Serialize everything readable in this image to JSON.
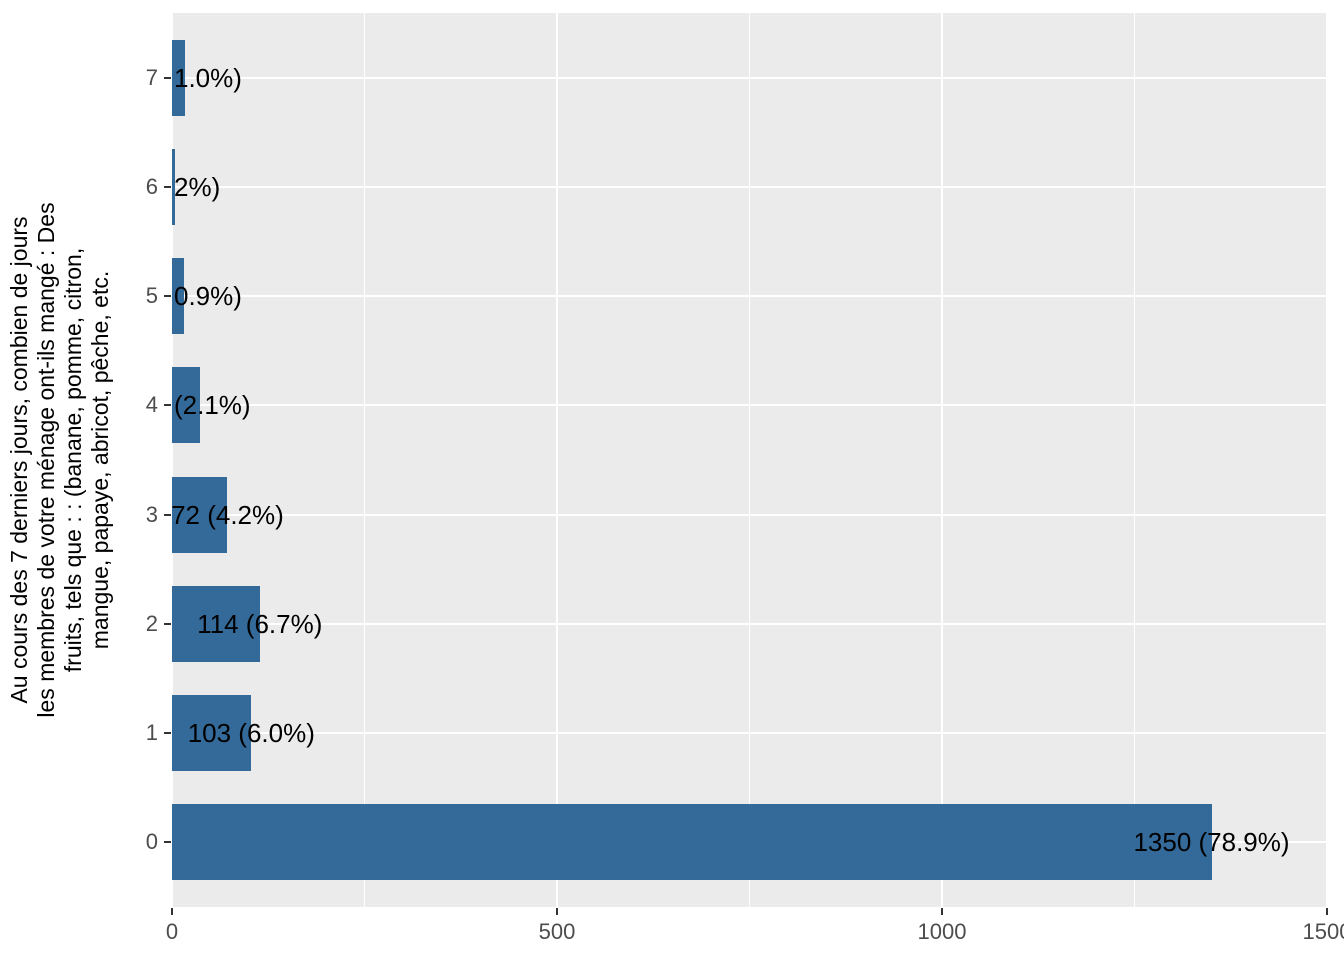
{
  "chart_data": {
    "type": "bar",
    "orientation": "horizontal",
    "title": "",
    "xlabel": "",
    "ylabel": "Au cours des 7 derniers jours, combien de jours les membres de votre ménage ont-ils mangé : Des fruits, tels que : : (banane, pomme, citron, mangue, papaye, abricot, pêche, etc.",
    "ylabel_lines": [
      "Au cours des 7 derniers jours, combien de jours",
      "les membres de votre ménage ont-ils mangé : Des",
      "fruits, tels que : : (banane, pomme, citron,",
      "mangue, papaye, abricot, pêche, etc."
    ],
    "categories": [
      "0",
      "1",
      "2",
      "3",
      "4",
      "5",
      "6",
      "7"
    ],
    "values": [
      1350,
      103,
      114,
      72,
      36,
      15,
      4,
      17
    ],
    "bar_labels": [
      "1350 (78.9%)",
      "103 (6.0%)",
      "114 (6.7%)",
      "72 (4.2%)",
      "(2.1%)",
      "0.9%)",
      "2%)",
      "1.0%)"
    ],
    "bar_label_clipped_at_panel_edge": [
      false,
      false,
      false,
      false,
      true,
      true,
      true,
      true
    ],
    "xlim": [
      0,
      1500
    ],
    "xticks": [
      "0",
      "500",
      "1000",
      "1500"
    ],
    "xtick_values": [
      0,
      500,
      1000,
      1500
    ],
    "xminor_values": [
      250,
      750,
      1250
    ],
    "grid": "major and minor vertical white lines, major horizontal white lines per category",
    "legend_position": "none",
    "colors": {
      "bar": "#336A99",
      "panel_bg": "#EBEBEB",
      "grid": "#FFFFFF",
      "tick_text": "#4D4D4D",
      "axis_title_text": "#000000",
      "bar_label_text": "#000000",
      "tick_mark": "#333333",
      "page_bg": "#FFFFFF"
    }
  }
}
